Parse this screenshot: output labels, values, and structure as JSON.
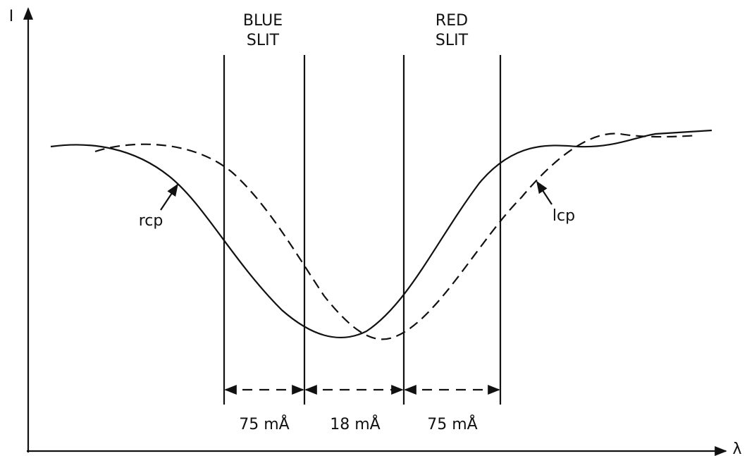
{
  "axes": {
    "y_label": "I",
    "x_label": "λ"
  },
  "slits": [
    {
      "label": [
        "BLUE",
        "SLIT"
      ]
    },
    {
      "label": [
        "RED",
        "SLIT"
      ]
    }
  ],
  "curves": [
    {
      "label": "rcp"
    },
    {
      "label": "lcp"
    }
  ],
  "spacings": [
    "75 mÅ",
    "18 mÅ",
    "75 mÅ"
  ]
}
